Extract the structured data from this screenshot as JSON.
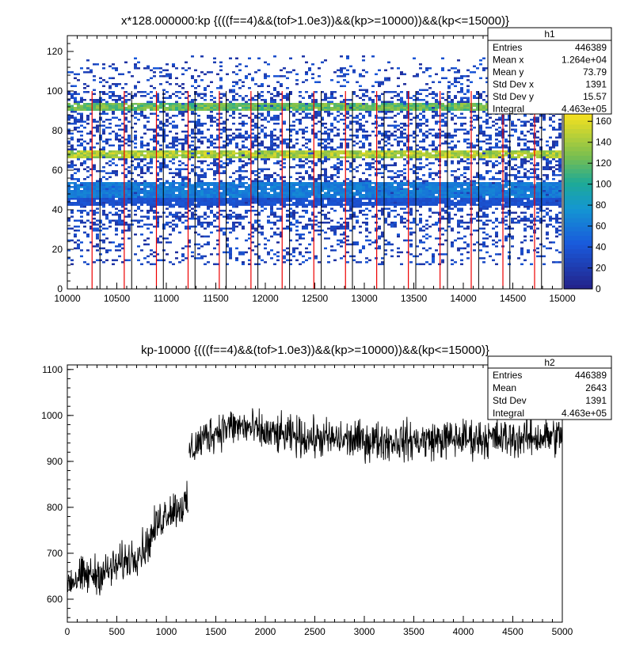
{
  "chart_data": [
    {
      "type": "heatmap",
      "title": "x*128.000000:kp {(((f==4)&&(tof>1.0e3))&&(kp>=10000))&&(kp<=15000)}",
      "xlabel": "",
      "ylabel": "",
      "xlim": [
        10000,
        15000
      ],
      "ylim": [
        0,
        128
      ],
      "x_ticks": [
        "10000",
        "10500",
        "11000",
        "11500",
        "12000",
        "12500",
        "13000",
        "13500",
        "14000",
        "14500",
        "15000"
      ],
      "y_ticks": [
        "0",
        "20",
        "40",
        "60",
        "80",
        "100",
        "120"
      ],
      "z_ticks": [
        "0",
        "20",
        "40",
        "60",
        "80",
        "100",
        "120",
        "140",
        "160"
      ],
      "zlim": [
        0,
        170
      ],
      "bands": [
        {
          "y_center": 92,
          "y_width": 4,
          "intensity": 140
        },
        {
          "y_center": 68,
          "y_width": 4,
          "intensity": 165
        },
        {
          "y_center": 50,
          "y_width": 8,
          "intensity": 70
        },
        {
          "y_center": 44,
          "y_width": 4,
          "intensity": 40
        }
      ],
      "red_lines_x": [
        10250,
        10575,
        10900,
        11220,
        11535,
        11855,
        12170,
        12490,
        12810,
        13125,
        13445,
        13765,
        14080,
        14400,
        14720
      ],
      "black_lines_x": [
        10330,
        10650,
        10970,
        11290,
        11605,
        11925,
        12245,
        12565,
        12880,
        13200,
        13520,
        13840,
        14155,
        14470,
        14790
      ],
      "stats": {
        "name": "h1",
        "rows": [
          {
            "label": "Entries",
            "value": "446389"
          },
          {
            "label": "Mean x",
            "value": "1.264e+04"
          },
          {
            "label": "Mean y",
            "value": "73.79"
          },
          {
            "label": "Std Dev x",
            "value": "1391"
          },
          {
            "label": "Std Dev y",
            "value": "15.57"
          },
          {
            "label": "Integral",
            "value": "4.463e+05"
          }
        ]
      },
      "colors": {
        "low": "#1a237e",
        "mid": "#1e88e5",
        "mid2": "#26a69a",
        "high": "#f9e21f"
      }
    },
    {
      "type": "line",
      "title": "kp-10000 {(((f==4)&&(tof>1.0e3))&&(kp>=10000))&&(kp<=15000)}",
      "xlabel": "",
      "ylabel": "",
      "xlim": [
        0,
        5000
      ],
      "ylim": [
        550,
        1110
      ],
      "x_ticks": [
        "0",
        "500",
        "1000",
        "1500",
        "2000",
        "2500",
        "3000",
        "3500",
        "4000",
        "4500",
        "5000"
      ],
      "y_ticks": [
        "600",
        "700",
        "800",
        "900",
        "1000",
        "1100"
      ],
      "segments": [
        {
          "x": [
            0,
            200,
            400,
            600,
            800,
            900,
            1000,
            1100,
            1220
          ],
          "y": [
            640,
            650,
            660,
            685,
            715,
            760,
            790,
            800,
            805
          ]
        },
        {
          "x": [
            1230,
            1400,
            1600,
            1800,
            2000,
            2500,
            3000,
            3500,
            4000,
            4500,
            5000
          ],
          "y": [
            920,
            955,
            975,
            975,
            960,
            950,
            945,
            945,
            950,
            950,
            955
          ]
        }
      ],
      "noise_amp": 35,
      "stats": {
        "name": "h2",
        "rows": [
          {
            "label": "Entries",
            "value": "446389"
          },
          {
            "label": "Mean",
            "value": "2643"
          },
          {
            "label": "Std Dev",
            "value": "1391"
          },
          {
            "label": "Integral",
            "value": "4.463e+05"
          }
        ]
      }
    }
  ]
}
